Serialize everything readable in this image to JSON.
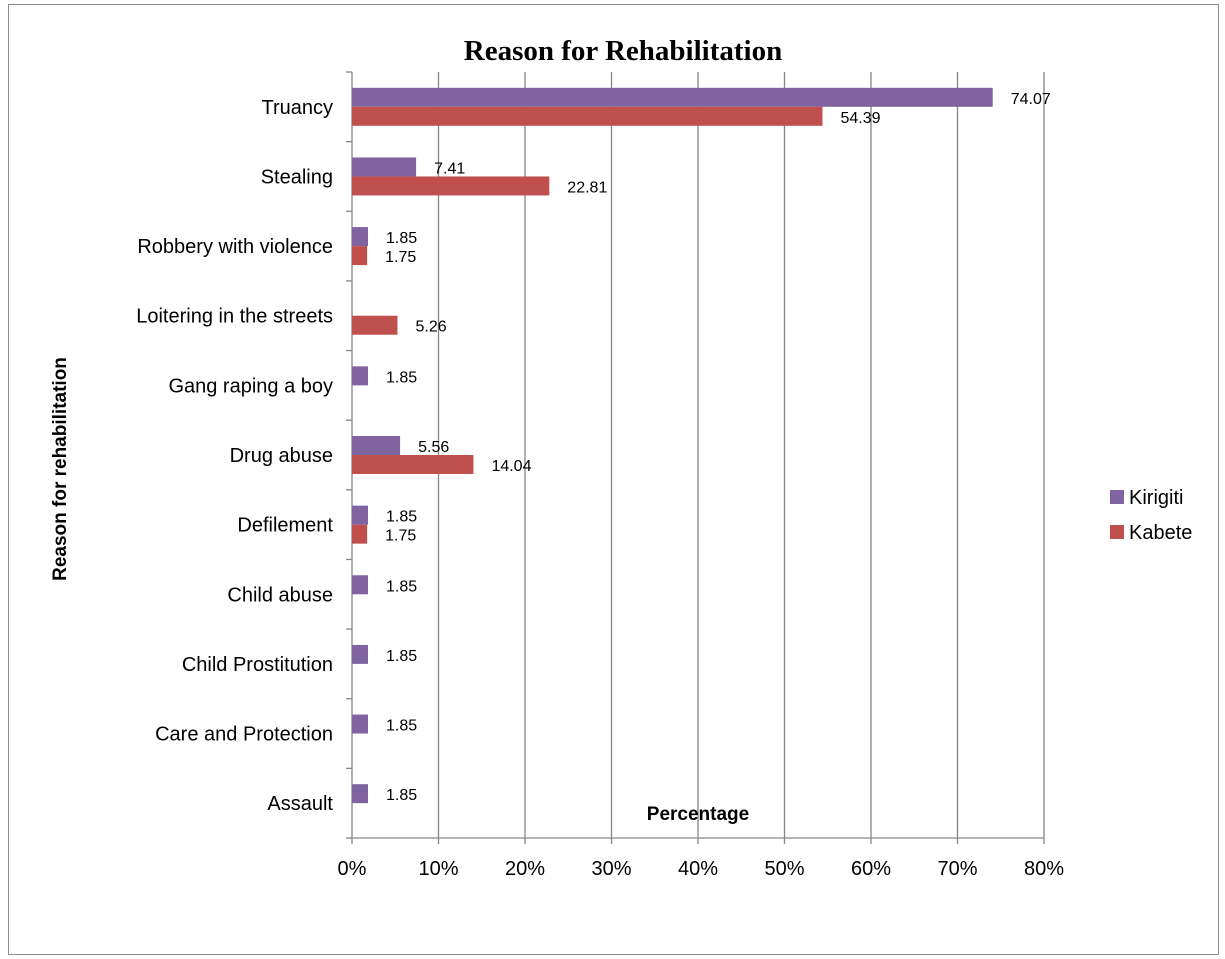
{
  "chart_data": {
    "type": "bar",
    "orientation": "horizontal",
    "title": "Reason for Rehabilitation",
    "xlabel": "Percentage",
    "ylabel": "Reason for rehabilitation",
    "categories": [
      "Truancy",
      "Stealing",
      "Robbery with violence",
      "Loitering in the streets",
      "Gang raping a boy",
      "Drug abuse",
      "Defilement",
      "Child abuse",
      "Child Prostitution",
      "Care and Protection",
      "Assault"
    ],
    "series": [
      {
        "name": "Kirigiti",
        "color": "#8064A2",
        "values": [
          74.07,
          7.41,
          1.85,
          null,
          1.85,
          5.56,
          1.85,
          1.85,
          1.85,
          1.85,
          1.85
        ],
        "labels": [
          "74.07",
          "7.41",
          "1.85",
          "",
          "1.85",
          "5.56",
          "1.85",
          "1.85",
          "1.85",
          "1.85",
          "1.85"
        ]
      },
      {
        "name": "Kabete",
        "color": "#C0504D",
        "values": [
          54.39,
          22.81,
          1.75,
          5.26,
          null,
          14.04,
          1.75,
          null,
          null,
          null,
          null
        ],
        "labels": [
          "54.39",
          "22.81",
          "1.75",
          "5.26",
          "",
          "14.04",
          "1.75",
          "",
          "",
          "",
          ""
        ]
      }
    ],
    "xlim": [
      0,
      80
    ],
    "xticks": [
      0,
      10,
      20,
      30,
      40,
      50,
      60,
      70,
      80
    ],
    "xtick_labels": [
      "0%",
      "10%",
      "20%",
      "30%",
      "40%",
      "50%",
      "60%",
      "70%",
      "80%"
    ],
    "grid": true,
    "legend_position": "right"
  }
}
